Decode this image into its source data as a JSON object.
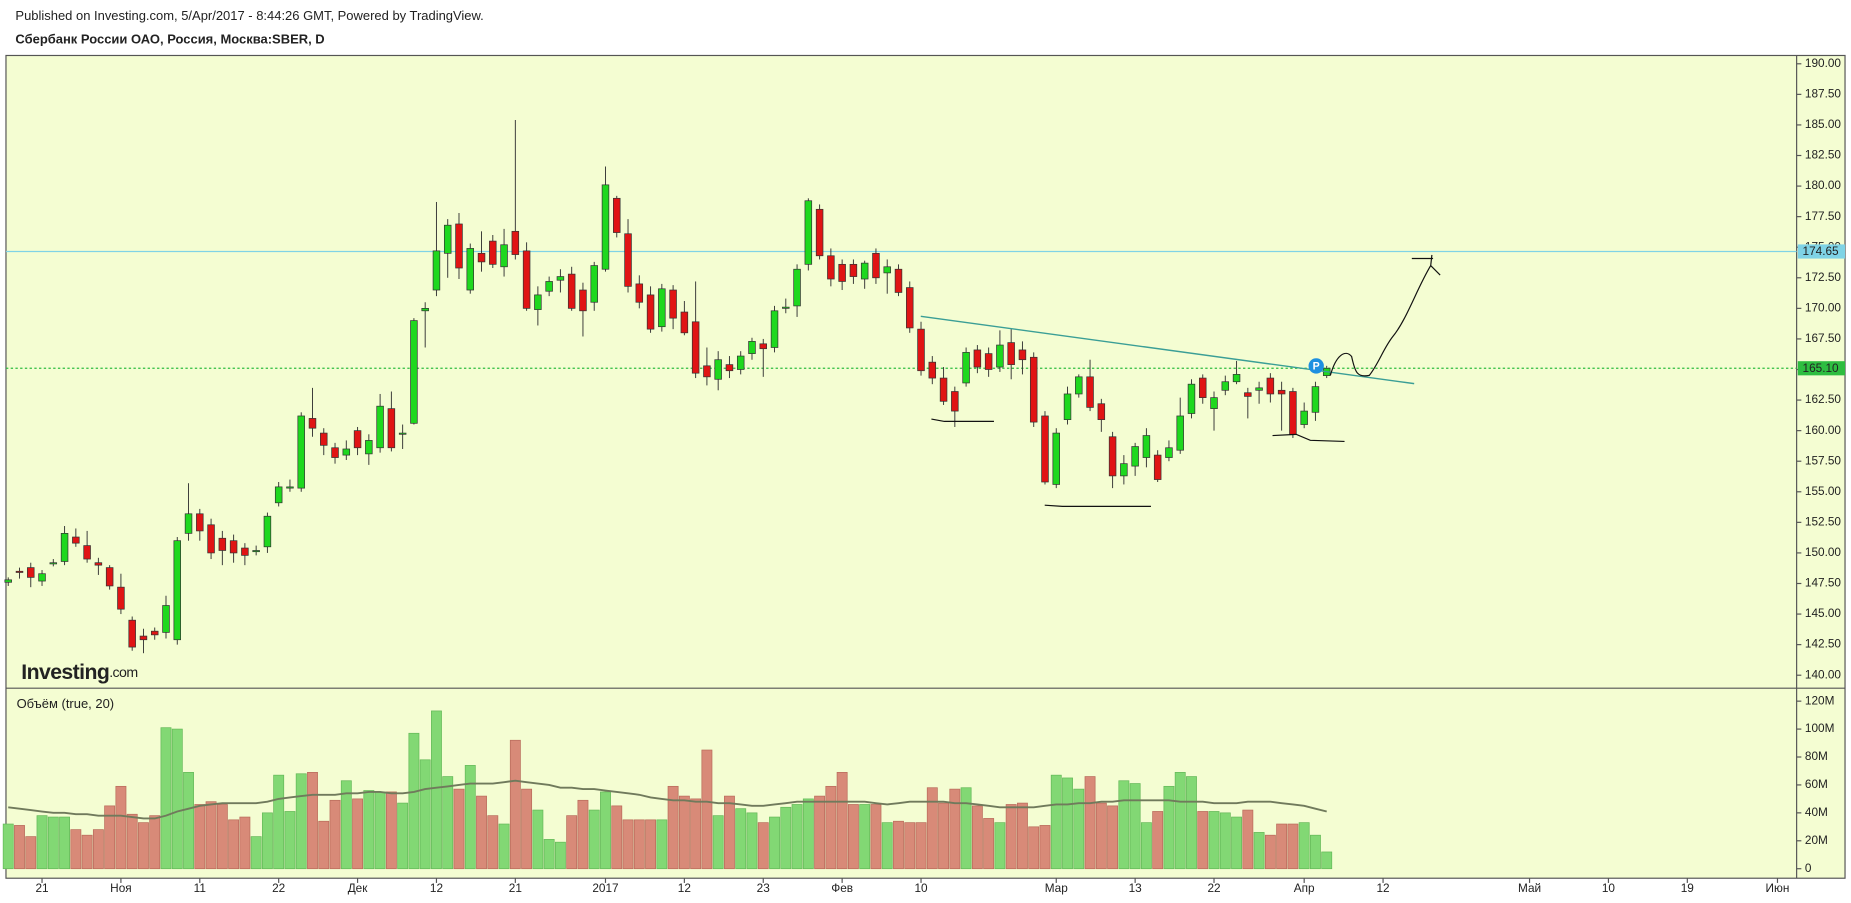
{
  "chart_data": {
    "type": "candlestick",
    "subtitle": "Published on Investing.com, 5/Apr/2017 - 8:44:26 GMT, Powered by TradingView.",
    "title": "Сбербанк России ОАО, Россия, Москва:SBER, D",
    "watermark": [
      "Investing",
      ".com"
    ],
    "annotations": [
      "P"
    ],
    "colors": {
      "up": "#1ed81e",
      "down": "#e01414",
      "volume_up": "#82d874",
      "volume_down": "#d88a78",
      "ma": "#707a5c"
    },
    "open": [
      147.6,
      148.5,
      148.8,
      147.7,
      149.1,
      149.3,
      151.3,
      150.6,
      149.2,
      148.8,
      147.2,
      144.5,
      143.2,
      143.6,
      143.5,
      142.9,
      151.6,
      153.2,
      152.3,
      151.2,
      151,
      150.4,
      150.1,
      150.5,
      154.1,
      155.3,
      155.3,
      161,
      159.8,
      158.6,
      158,
      160,
      158.1,
      158.6,
      161.8,
      159.7,
      160.6,
      169.8,
      171.5,
      174.5,
      176.9,
      171.5,
      174.5,
      175.5,
      173.4,
      176.3,
      174.7,
      169.9,
      171.4,
      172.3,
      172.8,
      171.5,
      170.5,
      173.2,
      179,
      176.1,
      172,
      171.1,
      168.5,
      171.5,
      169.7,
      168.9,
      165.3,
      164.2,
      165.4,
      165,
      166.3,
      167.1,
      166.8,
      170,
      170.2,
      173.6,
      178.1,
      174.3,
      173.6,
      173.6,
      172.4,
      174.5,
      172.9,
      173.2,
      171.7,
      168.3,
      165.6,
      164.3,
      163.2,
      163.9,
      166.6,
      166.3,
      165.2,
      167.2,
      166.6,
      166,
      161.2,
      155.6,
      160.9,
      163,
      164.4,
      162.2,
      159.5,
      156.3,
      157.1,
      157.8,
      158,
      157.8,
      158.4,
      161.4,
      164.3,
      161.8,
      163.3,
      164,
      163.1,
      163.3,
      164.3,
      163.3,
      163.2,
      160.5,
      161.5,
      164.5
    ],
    "high": [
      148,
      148.8,
      149.2,
      148.6,
      149.5,
      152.2,
      152,
      151.8,
      149.6,
      149,
      148.3,
      144.8,
      143.8,
      143.9,
      146.5,
      151.3,
      155.7,
      153.6,
      152.8,
      151.8,
      151.5,
      150.8,
      150.6,
      153.3,
      155.8,
      156,
      161.5,
      163.5,
      160.2,
      159,
      159.2,
      160.3,
      159.7,
      163,
      163.2,
      160.5,
      169.2,
      170.5,
      178.7,
      177.3,
      177.8,
      175.3,
      176.3,
      176,
      176.5,
      185.4,
      175.4,
      171.8,
      172.6,
      173.2,
      173.4,
      172.1,
      173.8,
      181.6,
      179.2,
      177.3,
      172.7,
      171.8,
      172,
      171.9,
      170.6,
      172.2,
      166.8,
      166.5,
      166.1,
      166.5,
      167.6,
      167.5,
      170.2,
      170.8,
      173.6,
      179,
      178.5,
      174.9,
      174,
      174,
      173.9,
      174.9,
      174,
      173.6,
      172.2,
      168.9,
      166.1,
      165.2,
      163.6,
      166.8,
      167,
      166.8,
      168.2,
      168.3,
      167.3,
      166.4,
      161.6,
      160.2,
      163.6,
      164.6,
      165.8,
      162.6,
      159.9,
      158,
      159,
      160.2,
      158.4,
      159.2,
      162.7,
      164.2,
      164.6,
      163.2,
      164.5,
      165.7,
      163.5,
      164,
      164.7,
      164,
      163.5,
      162.3,
      164,
      165.3
    ],
    "low": [
      147.3,
      147.9,
      147.2,
      147.3,
      148.9,
      149,
      150.5,
      149.2,
      148.2,
      147,
      145,
      142,
      141.8,
      142.9,
      143,
      142.5,
      151,
      151,
      149.5,
      149,
      149.2,
      149,
      149.8,
      150,
      153.8,
      155,
      155,
      159.5,
      158,
      157.3,
      157.6,
      158,
      157.2,
      158.2,
      158.3,
      158.5,
      160.5,
      166.8,
      171,
      172.5,
      172.4,
      171.2,
      173,
      173.3,
      172.6,
      174,
      169.8,
      168.6,
      171,
      171.3,
      169.8,
      167.7,
      169.8,
      173,
      175.8,
      171.3,
      170,
      168,
      168.1,
      168.3,
      167.8,
      164.3,
      163.7,
      163.3,
      164.3,
      164.6,
      165.8,
      164.4,
      166.4,
      169.6,
      169.3,
      173.1,
      174,
      171.8,
      171.5,
      172,
      171.6,
      172,
      171.2,
      171,
      168,
      164.5,
      163.8,
      162.1,
      160.3,
      163.6,
      164.7,
      164.4,
      164.8,
      164.2,
      164.6,
      160.3,
      155.6,
      155.3,
      160.5,
      162.7,
      161.6,
      159.9,
      155.3,
      155.6,
      156.3,
      157,
      155.8,
      157.5,
      158.1,
      161,
      162.2,
      160,
      162.9,
      163.8,
      161,
      162.2,
      162.3,
      160,
      159.4,
      160.2,
      160.8,
      164.3
    ],
    "close": [
      147.8,
      148.4,
      148,
      148.3,
      149.2,
      151.6,
      150.8,
      149.5,
      149,
      147.3,
      145.4,
      142.3,
      142.9,
      143.3,
      145.7,
      151,
      153.2,
      151.8,
      150,
      150.2,
      150,
      149.8,
      150.2,
      153,
      155.4,
      155.4,
      161.2,
      160.2,
      158.8,
      157.8,
      158.5,
      158.6,
      159.2,
      162,
      158.6,
      159.8,
      169,
      170,
      174.7,
      176.8,
      173.3,
      174.9,
      173.8,
      173.6,
      175.2,
      174.4,
      170,
      171.1,
      172.2,
      172.6,
      170,
      169.8,
      173.5,
      180.1,
      176.2,
      171.8,
      170.5,
      168.3,
      171.6,
      169.2,
      168,
      164.7,
      164.4,
      165.8,
      164.9,
      166.1,
      167.3,
      166.7,
      169.8,
      170.1,
      173.2,
      178.8,
      174.3,
      172.4,
      172.2,
      172.6,
      173.7,
      172.5,
      173.4,
      171.3,
      168.4,
      164.9,
      164.3,
      162.4,
      161.6,
      166.4,
      165.2,
      165,
      167,
      165.4,
      165.8,
      160.7,
      155.8,
      159.8,
      163,
      164.4,
      161.9,
      160.9,
      156.3,
      157.3,
      158.7,
      159.6,
      156,
      158.6,
      161.2,
      163.8,
      162.7,
      162.7,
      164,
      164.6,
      162.8,
      163.5,
      163,
      163,
      159.7,
      161.6,
      163.6,
      165.1
    ],
    "ylim": [
      138.94,
      190.68
    ],
    "yticks": [
      {
        "value": 140,
        "label": "140.00"
      },
      {
        "value": 142.5,
        "label": "142.50"
      },
      {
        "value": 145,
        "label": "145.00"
      },
      {
        "value": 147.5,
        "label": "147.50"
      },
      {
        "value": 150,
        "label": "150.00"
      },
      {
        "value": 152.5,
        "label": "152.50"
      },
      {
        "value": 155,
        "label": "155.00"
      },
      {
        "value": 157.5,
        "label": "157.50"
      },
      {
        "value": 160,
        "label": "160.00"
      },
      {
        "value": 162.5,
        "label": "162.50"
      },
      {
        "value": 165,
        "label": "165.00"
      },
      {
        "value": 167.5,
        "label": "167.50"
      },
      {
        "value": 170,
        "label": "170.00"
      },
      {
        "value": 172.5,
        "label": "172.50"
      },
      {
        "value": 175,
        "label": "175.00"
      },
      {
        "value": 177.5,
        "label": "177.50"
      },
      {
        "value": 180,
        "label": "180.00"
      },
      {
        "value": 182.5,
        "label": "182.50"
      },
      {
        "value": 185,
        "label": "185.00"
      },
      {
        "value": 187.5,
        "label": "187.50"
      },
      {
        "value": 190,
        "label": "190.00"
      }
    ],
    "price_lines": [
      {
        "value": 174.65,
        "label": "174.65",
        "color": "#7fd3e6"
      },
      {
        "value": 165.1,
        "label": "165.10",
        "color": "#2ebd40"
      }
    ],
    "xlim": [
      -0.2,
      158.7
    ],
    "xticks": [
      {
        "value": 3,
        "label": "21"
      },
      {
        "value": 10,
        "label": "Ноя"
      },
      {
        "value": 17,
        "label": "11"
      },
      {
        "value": 24,
        "label": "22"
      },
      {
        "value": 31,
        "label": "Дек"
      },
      {
        "value": 38,
        "label": "12"
      },
      {
        "value": 45,
        "label": "21"
      },
      {
        "value": 53,
        "label": "2017"
      },
      {
        "value": 60,
        "label": "12"
      },
      {
        "value": 67,
        "label": "23"
      },
      {
        "value": 74,
        "label": "Фев"
      },
      {
        "value": 81,
        "label": "10"
      },
      {
        "value": 93,
        "label": "Мар"
      },
      {
        "value": 100,
        "label": "13"
      },
      {
        "value": 107,
        "label": "22"
      },
      {
        "value": 115,
        "label": "Апр"
      },
      {
        "value": 122,
        "label": "12"
      },
      {
        "value": 135,
        "label": "Май"
      },
      {
        "value": 142,
        "label": "10"
      },
      {
        "value": 149,
        "label": "19"
      },
      {
        "value": 157,
        "label": "Июн"
      }
    ],
    "volume": {
      "label": "Объём (true, 20)",
      "values": [
        32,
        31,
        23,
        38,
        37,
        37,
        28,
        24,
        28,
        45,
        59,
        39,
        33,
        38,
        101,
        100,
        69,
        46,
        48,
        46,
        35,
        37,
        23,
        40,
        67,
        41,
        68,
        69,
        34,
        49,
        63,
        50,
        56,
        55,
        55,
        47,
        97,
        78,
        113,
        66,
        57,
        74,
        52,
        38,
        32,
        92,
        57,
        42,
        21,
        19,
        38,
        49,
        42,
        55,
        45,
        35,
        35,
        35,
        35,
        59,
        52,
        50,
        85,
        38,
        52,
        43,
        40,
        33,
        37,
        44,
        46,
        50,
        52,
        59,
        69,
        46,
        46,
        46,
        33,
        34,
        33,
        33,
        58,
        47,
        57,
        58,
        45,
        36,
        33,
        46,
        47,
        30,
        31,
        67,
        65,
        57,
        66,
        47,
        45,
        63,
        61,
        33,
        41,
        59,
        69,
        66,
        41,
        41,
        40,
        37,
        42,
        26,
        24,
        32,
        32,
        33,
        24,
        12
      ],
      "ma": [
        44,
        43,
        42,
        41,
        40,
        40,
        39,
        39,
        38,
        38,
        38,
        37,
        36,
        36,
        38,
        41,
        43,
        45,
        46,
        47,
        47,
        47,
        47,
        48,
        50,
        51,
        52,
        53,
        53,
        53,
        54,
        54,
        55,
        55,
        54,
        54,
        55,
        57,
        58,
        59,
        60,
        61,
        61,
        61,
        62,
        63,
        62,
        61,
        60,
        58,
        58,
        57,
        57,
        56,
        55,
        54,
        53,
        51,
        50,
        49,
        49,
        48,
        48,
        47,
        47,
        46,
        45,
        45,
        46,
        47,
        48,
        48,
        48,
        48,
        48,
        48,
        48,
        47,
        46,
        47,
        48,
        48,
        48,
        48,
        47,
        47,
        46,
        45,
        44,
        44,
        44,
        44,
        45,
        46,
        46,
        47,
        47,
        48,
        48,
        49,
        49,
        49,
        49,
        49,
        48,
        48,
        48,
        47,
        47,
        47,
        48,
        48,
        48,
        47,
        46,
        45,
        43,
        41
      ],
      "ylim": [
        -6.8,
        129.3
      ],
      "yticks": [
        0,
        {
          "value": 20,
          "label": "20M"
        },
        {
          "value": 40,
          "label": "40M"
        },
        {
          "value": 60,
          "label": "60M"
        },
        {
          "value": 80,
          "label": "80M"
        },
        {
          "value": 100,
          "label": "100M"
        },
        {
          "value": 120,
          "label": "120M"
        }
      ]
    }
  }
}
